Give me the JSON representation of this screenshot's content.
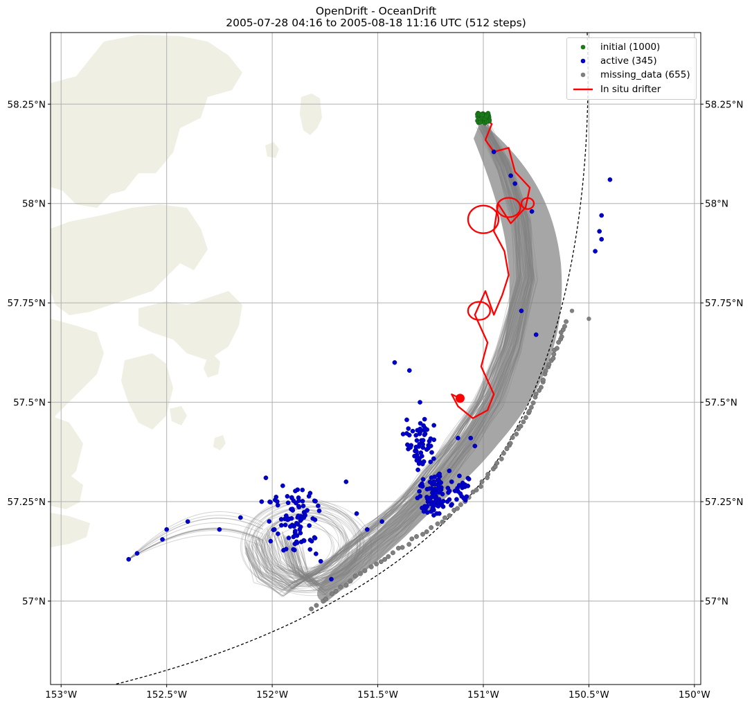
{
  "chart_data": {
    "type": "scatter",
    "title": "OpenDrift - OceanDrift",
    "subtitle": "2005-07-28 04:16 to 2005-08-18 11:16 UTC (512 steps)",
    "xlim": [
      -153.05,
      -149.97
    ],
    "ylim": [
      56.79,
      58.43
    ],
    "x_ticks": [
      {
        "value": -153.0,
        "label": "153°W"
      },
      {
        "value": -152.5,
        "label": "152.5°W"
      },
      {
        "value": -152.0,
        "label": "152°W"
      },
      {
        "value": -151.5,
        "label": "151.5°W"
      },
      {
        "value": -151.0,
        "label": "151°W"
      },
      {
        "value": -150.5,
        "label": "150.5°W"
      },
      {
        "value": -150.0,
        "label": "150°W"
      }
    ],
    "y_ticks": [
      {
        "value": 57.0,
        "label": "57°N"
      },
      {
        "value": 57.25,
        "label": "57.25°N"
      },
      {
        "value": 57.5,
        "label": "57.5°N"
      },
      {
        "value": 57.75,
        "label": "57.75°N"
      },
      {
        "value": 58.0,
        "label": "58°N"
      },
      {
        "value": 58.25,
        "label": "58.25°N"
      }
    ],
    "grid": true,
    "legend_position": "top-right",
    "legend": [
      {
        "label": "initial (1000)",
        "color": "#1a7a1a",
        "marker": "dot"
      },
      {
        "label": "active (345)",
        "color": "#0000cc",
        "marker": "dot"
      },
      {
        "label": "missing_data (655)",
        "color": "#808080",
        "marker": "dot"
      },
      {
        "label": "In situ drifter",
        "color": "#ff0000",
        "marker": "line"
      }
    ],
    "colors": {
      "land": "#efefe3",
      "trajectory": "#808080",
      "drifter": "#ff0000",
      "initial": "#1a7a1a",
      "active": "#0000cc",
      "missing": "#808080",
      "grid": "#b0b0b0"
    },
    "initial_center": {
      "lon": -151.0,
      "lat": 58.215
    },
    "drifter_track": [
      [
        -151.0,
        58.22
      ],
      [
        -150.96,
        58.2
      ],
      [
        -150.99,
        58.16
      ],
      [
        -150.95,
        58.13
      ],
      [
        -150.88,
        58.14
      ],
      [
        -150.85,
        58.08
      ],
      [
        -150.78,
        58.04
      ],
      [
        -150.8,
        57.99
      ],
      [
        -150.87,
        57.95
      ],
      [
        -150.93,
        58.0
      ],
      [
        -150.95,
        57.93
      ],
      [
        -150.9,
        57.88
      ],
      [
        -150.88,
        57.82
      ],
      [
        -150.91,
        57.77
      ],
      [
        -150.95,
        57.72
      ],
      [
        -150.99,
        57.78
      ],
      [
        -151.04,
        57.72
      ],
      [
        -150.98,
        57.65
      ],
      [
        -151.01,
        57.59
      ],
      [
        -150.95,
        57.52
      ],
      [
        -150.98,
        57.48
      ],
      [
        -151.05,
        57.46
      ],
      [
        -151.12,
        57.49
      ],
      [
        -151.15,
        57.52
      ],
      [
        -151.11,
        57.51
      ]
    ],
    "drifter_end": {
      "lon": -151.11,
      "lat": 57.51
    },
    "active_points": [
      [
        -152.68,
        57.105
      ],
      [
        -152.64,
        57.12
      ],
      [
        -152.52,
        57.155
      ],
      [
        -152.5,
        57.18
      ],
      [
        -152.4,
        57.2
      ],
      [
        -152.25,
        57.18
      ],
      [
        -152.15,
        57.21
      ],
      [
        -152.05,
        57.25
      ],
      [
        -152.03,
        57.31
      ],
      [
        -151.95,
        57.29
      ],
      [
        -151.88,
        57.28
      ],
      [
        -151.85,
        57.21
      ],
      [
        -151.8,
        57.16
      ],
      [
        -151.77,
        57.1
      ],
      [
        -151.72,
        57.055
      ],
      [
        -151.65,
        57.3
      ],
      [
        -151.6,
        57.22
      ],
      [
        -151.55,
        57.18
      ],
      [
        -151.48,
        57.2
      ],
      [
        -151.42,
        57.6
      ],
      [
        -151.35,
        57.58
      ],
      [
        -151.3,
        57.5
      ],
      [
        -151.28,
        57.43
      ],
      [
        -151.25,
        57.35
      ],
      [
        -151.2,
        57.28
      ],
      [
        -151.17,
        57.25
      ],
      [
        -151.15,
        57.3
      ],
      [
        -151.12,
        57.41
      ],
      [
        -151.06,
        57.41
      ],
      [
        -151.04,
        57.39
      ],
      [
        -150.95,
        58.13
      ],
      [
        -150.87,
        58.07
      ],
      [
        -150.85,
        58.05
      ],
      [
        -150.77,
        57.98
      ],
      [
        -150.82,
        57.73
      ],
      [
        -150.75,
        57.67
      ],
      [
        -150.4,
        58.06
      ],
      [
        -150.44,
        57.97
      ],
      [
        -150.45,
        57.93
      ],
      [
        -150.44,
        57.91
      ],
      [
        -150.47,
        57.88
      ],
      [
        -151.38,
        57.42
      ],
      [
        -151.32,
        57.38
      ],
      [
        -151.22,
        57.22
      ],
      [
        -151.9,
        57.13
      ]
    ],
    "missing_edge_points": [
      [
        -151.81,
        56.98
      ],
      [
        -151.6,
        57.06
      ],
      [
        -151.4,
        57.13
      ],
      [
        -151.2,
        57.2
      ],
      [
        -151.03,
        57.28
      ],
      [
        -150.9,
        57.37
      ],
      [
        -150.8,
        57.46
      ],
      [
        -150.72,
        57.55
      ],
      [
        -150.66,
        57.63
      ],
      [
        -150.6,
        57.71
      ]
    ]
  }
}
